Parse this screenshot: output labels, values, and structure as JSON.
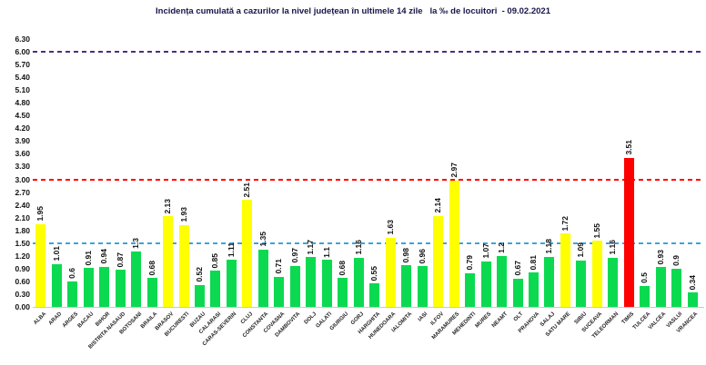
{
  "title": "Incidența cumulată a cazurilor la nivel județean în ultimele 14 zile   la ‰ de locuitori  - 09.02.2021",
  "chart_data": {
    "type": "bar",
    "title": "Incidența cumulată a cazurilor la nivel județean în ultimele 14 zile   la ‰ de locuitori  - 09.02.2021",
    "xlabel": "",
    "ylabel": "",
    "ylim": [
      0,
      6.3
    ],
    "ytick_labels": [
      "0.00",
      "0.30",
      "0.60",
      "0.90",
      "1.20",
      "1.50",
      "1.80",
      "2.10",
      "2.40",
      "2.70",
      "3.00",
      "3.30",
      "3.60",
      "3.90",
      "4.20",
      "4.50",
      "4.80",
      "5.10",
      "5.40",
      "5.70",
      "6.00",
      "6.30"
    ],
    "grid": false,
    "legend": false,
    "categories": [
      "ALBA",
      "ARAD",
      "ARGES",
      "BACAU",
      "BIHOR",
      "BISTRITA NASAUD",
      "BOTOSANI",
      "BRAILA",
      "BRASOV",
      "BUCURESTI",
      "BUZAU",
      "CALARASI",
      "CARAS-SEVERIN",
      "CLUJ",
      "CONSTANTA",
      "COVASNA",
      "DAMBOVITA",
      "DOLJ",
      "GALATI",
      "GIURGIU",
      "GORJ",
      "HARGHITA",
      "HUNEDOARA",
      "IALOMITA",
      "IASI",
      "ILFOV",
      "MARAMURES",
      "MEHEDINTI",
      "MURES",
      "NEAMT",
      "OLT",
      "PRAHOVA",
      "SALAJ",
      "SATU MARE",
      "SIBIU",
      "SUCEAVA",
      "TELEORMAN",
      "TIMIS",
      "TULCEA",
      "VALCEA",
      "VASLUI",
      "VRANCEA"
    ],
    "values": [
      1.95,
      1.01,
      0.6,
      0.91,
      0.94,
      0.87,
      1.3,
      0.68,
      2.13,
      1.93,
      0.52,
      0.85,
      1.11,
      2.51,
      1.35,
      0.71,
      0.97,
      1.17,
      1.1,
      0.68,
      1.16,
      0.55,
      1.63,
      0.98,
      0.96,
      2.14,
      2.97,
      0.79,
      1.07,
      1.2,
      0.67,
      0.81,
      1.18,
      1.72,
      1.09,
      1.55,
      1.16,
      3.51,
      0.5,
      0.93,
      0.9,
      0.34
    ],
    "value_labels": [
      "1.95",
      "1.01",
      "0.6",
      "0.91",
      "0.94",
      "0.87",
      "1.3",
      "0.68",
      "2.13",
      "1.93",
      "0.52",
      "0.85",
      "1.11",
      "2.51",
      "1.35",
      "0.71",
      "0.97",
      "1.17",
      "1.1",
      "0.68",
      "1.16",
      "0.55",
      "1.63",
      "0.98",
      "0.96",
      "2.14",
      "2.97",
      "0.79",
      "1.07",
      "1.2",
      "0.67",
      "0.81",
      "1.18",
      "1.72",
      "1.09",
      "1.55",
      "1.16",
      "3.51",
      "0.5",
      "0.93",
      "0.9",
      "0.34"
    ],
    "bar_colors": [
      "yellow",
      "green",
      "green",
      "green",
      "green",
      "green",
      "green",
      "green",
      "yellow",
      "yellow",
      "green",
      "green",
      "green",
      "yellow",
      "green",
      "green",
      "green",
      "green",
      "green",
      "green",
      "green",
      "green",
      "yellow",
      "green",
      "green",
      "yellow",
      "yellow",
      "green",
      "green",
      "green",
      "green",
      "green",
      "green",
      "yellow",
      "green",
      "yellow",
      "green",
      "red",
      "green",
      "green",
      "green",
      "green"
    ],
    "palette": {
      "green": "#0bda51",
      "yellow": "#ffff00",
      "red": "#fe0000"
    },
    "reference_lines": [
      {
        "value": 1.5,
        "color": "#3aa5dc"
      },
      {
        "value": 3.0,
        "color": "#ff0000"
      },
      {
        "value": 6.0,
        "color": "#4f2d7f"
      }
    ]
  }
}
